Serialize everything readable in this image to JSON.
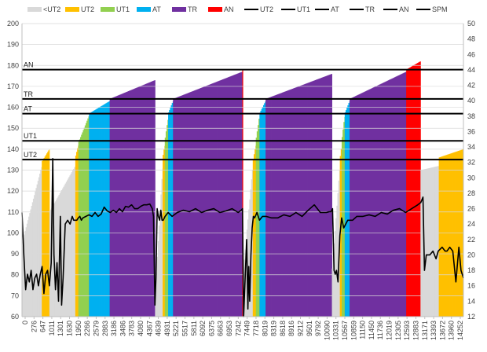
{
  "chart_data": {
    "type": "bar+line",
    "title": "",
    "xlabel": "",
    "ylabel": "",
    "ylim": [
      60,
      200
    ],
    "y2lim": [
      12,
      50
    ],
    "xlim": [
      0,
      14500
    ],
    "y_ticks": [
      60,
      70,
      80,
      90,
      100,
      110,
      120,
      130,
      140,
      150,
      160,
      170,
      180,
      190,
      200
    ],
    "y2_ticks": [
      12,
      14,
      16,
      18,
      20,
      22,
      24,
      26,
      28,
      30,
      32,
      34,
      36,
      38,
      40,
      42,
      44,
      46,
      48,
      50
    ],
    "x_tick_labels": [
      "0",
      "276",
      "647",
      "1011",
      "1301",
      "1630",
      "1950",
      "2266",
      "2579",
      "2883",
      "3186",
      "3486",
      "3783",
      "4080",
      "4367",
      "4639",
      "4931",
      "5221",
      "5517",
      "5811",
      "6092",
      "6375",
      "6663",
      "6953",
      "7242",
      "7449",
      "7718",
      "8019",
      "8319",
      "8618",
      "8916",
      "9212",
      "9501",
      "9792",
      "10090",
      "10331",
      "10567",
      "10859",
      "11150",
      "11450",
      "11736",
      "12019",
      "12305",
      "12593",
      "12883",
      "13171",
      "13393",
      "13672",
      "13960",
      "14252"
    ],
    "legend": [
      "<UT2",
      "UT2",
      "UT1",
      "AT",
      "TR",
      "AN",
      "UT2",
      "UT1",
      "AT",
      "TR",
      "AN",
      "SPM"
    ],
    "zone_colors": {
      "<UT2": "#d9d9d9",
      "UT2": "#ffc000",
      "UT1": "#92d050",
      "AT": "#00b0f0",
      "TR": "#7030a0",
      "AN": "#ff0000"
    },
    "line_color": "#000000",
    "thresholds": [
      {
        "label": "AN",
        "value": 178
      },
      {
        "label": "TR",
        "value": 164
      },
      {
        "label": "AT",
        "value": 157
      },
      {
        "label": "UT1",
        "value": 144
      },
      {
        "label": "UT2",
        "value": 135
      }
    ],
    "hr_segments": [
      {
        "zone": "<UT2",
        "from": 0,
        "to": 650,
        "hr_from": 95,
        "hr_to": 132
      },
      {
        "zone": "UT2",
        "from": 650,
        "to": 900,
        "hr_from": 134,
        "hr_to": 140
      },
      {
        "zone": "<UT2",
        "from": 900,
        "to": 1750,
        "hr_from": 110,
        "hr_to": 132
      },
      {
        "zone": "UT2",
        "from": 1750,
        "to": 1850,
        "hr_from": 136,
        "hr_to": 142
      },
      {
        "zone": "UT1",
        "from": 1850,
        "to": 2200,
        "hr_from": 143,
        "hr_to": 156
      },
      {
        "zone": "AT",
        "from": 2200,
        "to": 2880,
        "hr_from": 157,
        "hr_to": 163
      },
      {
        "zone": "TR",
        "from": 2880,
        "to": 4370,
        "hr_from": 164,
        "hr_to": 173
      },
      {
        "zone": "<UT2",
        "from": 4370,
        "to": 4620,
        "hr_from": 70,
        "hr_to": 132
      },
      {
        "zone": "UT2",
        "from": 4620,
        "to": 4690,
        "hr_from": 136,
        "hr_to": 142
      },
      {
        "zone": "UT1",
        "from": 4690,
        "to": 4800,
        "hr_from": 144,
        "hr_to": 155
      },
      {
        "zone": "AT",
        "from": 4800,
        "to": 4960,
        "hr_from": 157,
        "hr_to": 163
      },
      {
        "zone": "TR",
        "from": 4960,
        "to": 7235,
        "hr_from": 164,
        "hr_to": 177
      },
      {
        "zone": "AN",
        "from": 7235,
        "to": 7255,
        "hr_from": 178,
        "hr_to": 178
      },
      {
        "zone": "<UT2",
        "from": 7255,
        "to": 7580,
        "hr_from": 80,
        "hr_to": 132
      },
      {
        "zone": "UT2",
        "from": 7580,
        "to": 7680,
        "hr_from": 134,
        "hr_to": 142
      },
      {
        "zone": "UT1",
        "from": 7680,
        "to": 7800,
        "hr_from": 144,
        "hr_to": 156
      },
      {
        "zone": "AT",
        "from": 7800,
        "to": 8000,
        "hr_from": 157,
        "hr_to": 163
      },
      {
        "zone": "TR",
        "from": 8000,
        "to": 10180,
        "hr_from": 164,
        "hr_to": 176
      },
      {
        "zone": "<UT2",
        "from": 10180,
        "to": 10440,
        "hr_from": 80,
        "hr_to": 132
      },
      {
        "zone": "UT2",
        "from": 10440,
        "to": 10500,
        "hr_from": 135,
        "hr_to": 142
      },
      {
        "zone": "UT1",
        "from": 10500,
        "to": 10600,
        "hr_from": 144,
        "hr_to": 156
      },
      {
        "zone": "AT",
        "from": 10600,
        "to": 10760,
        "hr_from": 157,
        "hr_to": 163
      },
      {
        "zone": "TR",
        "from": 10760,
        "to": 12620,
        "hr_from": 164,
        "hr_to": 177
      },
      {
        "zone": "AN",
        "from": 12620,
        "to": 13090,
        "hr_from": 178,
        "hr_to": 182
      },
      {
        "zone": "<UT2",
        "from": 13090,
        "to": 13690,
        "hr_from": 130,
        "hr_to": 132
      },
      {
        "zone": "UT2",
        "from": 13690,
        "to": 14500,
        "hr_from": 136,
        "hr_to": 140
      }
    ],
    "spm_series": {
      "name": "SPM",
      "x": [
        0,
        60,
        120,
        180,
        240,
        300,
        360,
        420,
        480,
        540,
        600,
        660,
        720,
        780,
        840,
        900,
        960,
        1011,
        1050,
        1100,
        1150,
        1200,
        1260,
        1301,
        1350,
        1420,
        1500,
        1580,
        1650,
        1700,
        1750,
        1800,
        1850,
        1900,
        1950,
        2000,
        2100,
        2200,
        2300,
        2400,
        2500,
        2600,
        2700,
        2800,
        2900,
        3000,
        3100,
        3200,
        3300,
        3400,
        3500,
        3600,
        3700,
        3800,
        3900,
        4000,
        4100,
        4200,
        4280,
        4320,
        4367,
        4400,
        4440,
        4480,
        4520,
        4560,
        4600,
        4639,
        4700,
        4800,
        4931,
        5100,
        5300,
        5500,
        5700,
        5900,
        6100,
        6300,
        6500,
        6700,
        6900,
        7100,
        7200,
        7242,
        7280,
        7330,
        7380,
        7420,
        7449,
        7480,
        7520,
        7560,
        7600,
        7640,
        7718,
        7800,
        7900,
        8019,
        8200,
        8400,
        8600,
        8800,
        9000,
        9200,
        9400,
        9600,
        9800,
        10000,
        10090,
        10150,
        10200,
        10250,
        10290,
        10331,
        10380,
        10440,
        10500,
        10567,
        10700,
        10859,
        11000,
        11200,
        11400,
        11600,
        11800,
        12000,
        12200,
        12400,
        12600,
        12800,
        13000,
        13100,
        13171,
        13220,
        13280,
        13393,
        13500,
        13600,
        13672,
        13800,
        13900,
        13960,
        14050,
        14150,
        14252,
        14350,
        14420,
        14500
      ],
      "y": [
        25.5,
        20,
        15.5,
        17.5,
        16.5,
        18,
        15.5,
        17,
        17.5,
        16,
        17.5,
        18.5,
        15,
        17.5,
        18,
        16,
        19,
        32.5,
        20,
        15.5,
        19,
        14,
        25,
        13.5,
        17,
        24,
        24.5,
        24,
        25,
        24.5,
        24.5,
        24.5,
        24.8,
        25,
        24.5,
        24.8,
        25,
        25.2,
        25,
        25.5,
        25,
        25.3,
        26.2,
        25.7,
        25.5,
        25.8,
        25.5,
        26,
        25.6,
        26.3,
        26.2,
        26.5,
        26,
        26,
        26.3,
        26.5,
        26.5,
        26.6,
        26,
        25,
        13.5,
        17,
        26,
        25,
        24.5,
        25.8,
        24.5,
        24.5,
        25,
        25.5,
        25,
        25.5,
        25.8,
        25.6,
        26,
        25.5,
        25.8,
        26,
        25.5,
        25.7,
        26,
        25.5,
        25.8,
        26,
        12,
        17,
        22,
        13,
        18.5,
        14,
        20,
        23.5,
        25,
        24.8,
        25.5,
        24.5,
        25,
        25,
        24.8,
        24.8,
        25.2,
        25,
        25.5,
        25,
        25.8,
        26.5,
        25.5,
        25.5,
        25.6,
        25.6,
        26,
        18,
        17.5,
        18,
        16.5,
        22.5,
        24.8,
        23.5,
        24.5,
        24.5,
        25,
        25,
        25.2,
        25,
        25.5,
        25.3,
        25.8,
        26,
        25.5,
        26,
        26.5,
        26.8,
        27.5,
        18,
        20,
        20,
        20.5,
        19.5,
        20.5,
        21,
        20.5,
        20.5,
        21,
        20.5,
        16.5,
        21,
        18,
        17
      ]
    }
  }
}
